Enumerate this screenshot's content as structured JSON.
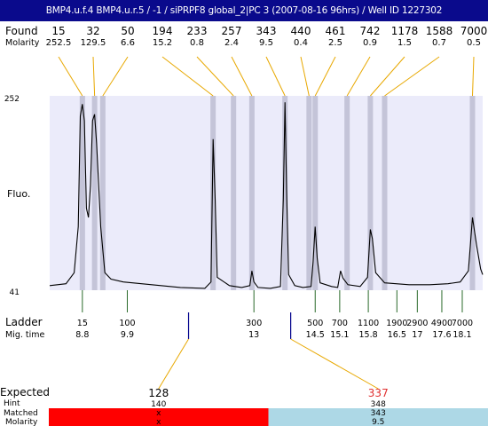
{
  "title": "BMP4.u.f.4  BMP4.u.r.5 / -1 / siPRPF8 global_2|PC 3 (2007-08-16 96hrs) / Well ID 1227302",
  "colors": {
    "title_bg": "#0a0a8c",
    "plot_bg": "#ebebfa",
    "band": "#c4c4d8",
    "connector": "#e8a800",
    "ladder_tick": "#2a6a2a",
    "expected_tick": "#00008b",
    "trace": "#000000",
    "unmatched_bar": "#ff0000",
    "matched_bar": "#add8e6",
    "hint_red": "#e03030"
  },
  "labels": {
    "found": "Found",
    "molarity": "Molarity",
    "fluo": "Fluo.",
    "ladder": "Ladder",
    "mig_time": "Mig. time",
    "expected": "Expected",
    "hint": "Hint",
    "matched": "Matched",
    "molarity_row": "Molarity"
  },
  "chart_data": {
    "type": "line",
    "x_label": "",
    "y_label": "Fluo.",
    "y_range": [
      41,
      252
    ],
    "x_range": [
      8.0,
      18.6
    ],
    "trace": [
      [
        8.0,
        46
      ],
      [
        8.4,
        48
      ],
      [
        8.6,
        60
      ],
      [
        8.7,
        110
      ],
      [
        8.75,
        230
      ],
      [
        8.8,
        243
      ],
      [
        8.85,
        225
      ],
      [
        8.9,
        130
      ],
      [
        8.95,
        120
      ],
      [
        9.0,
        155
      ],
      [
        9.05,
        225
      ],
      [
        9.1,
        232
      ],
      [
        9.15,
        200
      ],
      [
        9.25,
        110
      ],
      [
        9.35,
        60
      ],
      [
        9.5,
        53
      ],
      [
        9.8,
        50
      ],
      [
        10.5,
        47
      ],
      [
        11.2,
        44
      ],
      [
        11.8,
        43
      ],
      [
        11.95,
        50
      ],
      [
        12.0,
        205
      ],
      [
        12.05,
        140
      ],
      [
        12.1,
        55
      ],
      [
        12.4,
        46
      ],
      [
        12.7,
        44
      ],
      [
        12.9,
        46
      ],
      [
        12.95,
        62
      ],
      [
        13.0,
        50
      ],
      [
        13.1,
        44
      ],
      [
        13.4,
        43
      ],
      [
        13.65,
        45
      ],
      [
        13.72,
        140
      ],
      [
        13.76,
        245
      ],
      [
        13.8,
        150
      ],
      [
        13.85,
        58
      ],
      [
        14.0,
        46
      ],
      [
        14.2,
        44
      ],
      [
        14.4,
        45
      ],
      [
        14.45,
        72
      ],
      [
        14.5,
        110
      ],
      [
        14.55,
        76
      ],
      [
        14.62,
        49
      ],
      [
        14.9,
        45
      ],
      [
        15.05,
        44
      ],
      [
        15.12,
        62
      ],
      [
        15.18,
        54
      ],
      [
        15.3,
        47
      ],
      [
        15.6,
        45
      ],
      [
        15.78,
        55
      ],
      [
        15.85,
        107
      ],
      [
        15.9,
        97
      ],
      [
        15.98,
        60
      ],
      [
        16.2,
        49
      ],
      [
        16.8,
        47
      ],
      [
        17.3,
        47
      ],
      [
        17.75,
        48
      ],
      [
        18.05,
        50
      ],
      [
        18.25,
        62
      ],
      [
        18.35,
        120
      ],
      [
        18.45,
        90
      ],
      [
        18.55,
        64
      ],
      [
        18.6,
        58
      ]
    ],
    "found": [
      {
        "size": "15",
        "molarity": "252.5",
        "t": 8.8
      },
      {
        "size": "32",
        "molarity": "129.5",
        "t": 9.1
      },
      {
        "size": "50",
        "molarity": "6.6",
        "t": 9.3
      },
      {
        "size": "194",
        "molarity": "15.2",
        "t": 12.0
      },
      {
        "size": "233",
        "molarity": "0.8",
        "t": 12.5
      },
      {
        "size": "257",
        "molarity": "2.4",
        "t": 12.95
      },
      {
        "size": "343",
        "molarity": "9.5",
        "t": 13.76
      },
      {
        "size": "440",
        "molarity": "0.4",
        "t": 14.35
      },
      {
        "size": "461",
        "molarity": "2.5",
        "t": 14.5
      },
      {
        "size": "742",
        "molarity": "0.9",
        "t": 15.28
      },
      {
        "size": "1178",
        "molarity": "1.5",
        "t": 15.85
      },
      {
        "size": "1588",
        "molarity": "0.7",
        "t": 16.2
      },
      {
        "size": "7000",
        "molarity": "0.5",
        "t": 18.35
      }
    ],
    "ladder": [
      {
        "size": "15",
        "time": "8.8"
      },
      {
        "size": "100",
        "time": "9.9"
      },
      {
        "size": "300",
        "time": "13"
      },
      {
        "size": "500",
        "time": "14.5"
      },
      {
        "size": "700",
        "time": "15.1"
      },
      {
        "size": "1100",
        "time": "15.8"
      },
      {
        "size": "1900",
        "time": "16.5"
      },
      {
        "size": "2900",
        "time": "17"
      },
      {
        "size": "4900",
        "time": "17.6"
      },
      {
        "size": "7000",
        "time": "18.1"
      }
    ],
    "expected": [
      {
        "size": "128",
        "hint": "140",
        "matched": "x",
        "molarity": "x",
        "t": 11.4,
        "status": "unmatched"
      },
      {
        "size": "337",
        "hint": "348",
        "matched": "343",
        "molarity": "9.5",
        "t": 13.9,
        "status": "matched"
      }
    ]
  }
}
